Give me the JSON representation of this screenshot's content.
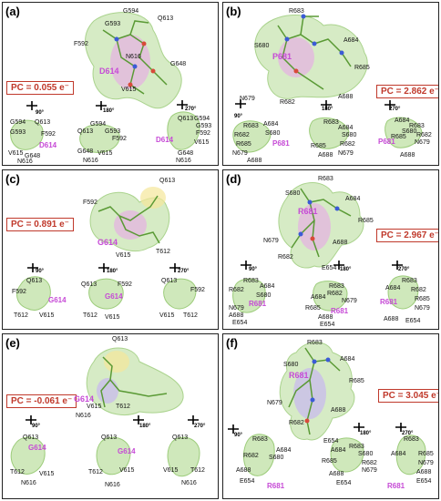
{
  "colors": {
    "key_residue": "#c64ad6",
    "pc_text": "#c0392b",
    "surface": "#b7dca0",
    "carbon": "#7ab648",
    "nitrogen": "#3b5bd6",
    "oxygen": "#d84a3a"
  },
  "rotation_icon": "axis-rotation-icon",
  "panels": [
    {
      "id": "a",
      "label": "(a)",
      "pc": "PC = 0.055 e⁻",
      "key": "D614",
      "main_labels": [
        "G594",
        "G593",
        "Q613",
        "F592",
        "N616",
        "V615",
        "G648"
      ],
      "rotations": [
        "90°",
        "180°",
        "270°"
      ],
      "small_views": [
        {
          "key": "D614",
          "labels": [
            "G594",
            "Q613",
            "G593",
            "F592",
            "V615",
            "G648",
            "N616"
          ]
        },
        {
          "key": "",
          "labels": [
            "G594",
            "Q613",
            "G593",
            "F592",
            "G648",
            "V615",
            "N616"
          ]
        },
        {
          "key": "D614",
          "labels": [
            "Q613",
            "G594",
            "G593",
            "F592",
            "V615",
            "G648",
            "N616"
          ]
        }
      ]
    },
    {
      "id": "b",
      "label": "(b)",
      "pc": "PC = 2.862 e⁻",
      "key": "P681",
      "main_labels": [
        "R683",
        "S680",
        "A684",
        "R685",
        "N679",
        "R682",
        "A688"
      ],
      "rotations": [
        "90°",
        "180°",
        "270°"
      ],
      "small_views": [
        {
          "key": "P681",
          "labels": [
            "R683",
            "A684",
            "R682",
            "S680",
            "A688",
            "N679",
            "R685"
          ]
        },
        {
          "key": "",
          "labels": [
            "R683",
            "A684",
            "S680",
            "R685",
            "A688",
            "N679",
            "R682"
          ]
        },
        {
          "key": "P681",
          "labels": [
            "A684",
            "R683",
            "R685",
            "N679",
            "A688",
            "S680",
            "R682"
          ]
        }
      ]
    },
    {
      "id": "c",
      "label": "(c)",
      "pc": "PC = 0.891 e⁻",
      "key": "G614",
      "main_labels": [
        "Q613",
        "F592",
        "V615",
        "T612"
      ],
      "rotations": [
        "90°",
        "180°",
        "270°"
      ],
      "small_views": [
        {
          "key": "G614",
          "labels": [
            "Q613",
            "F592",
            "T612",
            "V615"
          ]
        },
        {
          "key": "G614",
          "labels": [
            "Q613",
            "F592",
            "T612",
            "V615"
          ]
        },
        {
          "key": "",
          "labels": [
            "Q613",
            "F592",
            "V615",
            "T612"
          ]
        }
      ]
    },
    {
      "id": "d",
      "label": "(d)",
      "pc": "PC = 2.967 e⁻",
      "key": "R681",
      "main_labels": [
        "R683",
        "S680",
        "A684",
        "R685",
        "N679",
        "R682",
        "A688",
        "E654"
      ],
      "rotations": [
        "90°",
        "180°",
        "270°"
      ],
      "small_views": [
        {
          "key": "R681",
          "labels": [
            "R683",
            "A684",
            "R682",
            "S680",
            "N679",
            "A688",
            "E654"
          ]
        },
        {
          "key": "R681",
          "labels": [
            "R683",
            "R682",
            "A684",
            "R685",
            "N679",
            "A688",
            "E654"
          ]
        },
        {
          "key": "R681",
          "labels": [
            "R683",
            "A684",
            "R682",
            "R685",
            "N679",
            "A688",
            "E654"
          ]
        }
      ]
    },
    {
      "id": "e",
      "label": "(e)",
      "pc": "PC = -0.061 e⁻",
      "key": "G614",
      "main_labels": [
        "Q613",
        "V615",
        "T612",
        "N616"
      ],
      "rotations": [
        "90°",
        "180°",
        "270°"
      ],
      "small_views": [
        {
          "key": "G614",
          "labels": [
            "Q613",
            "T612",
            "V615",
            "N616"
          ]
        },
        {
          "key": "G614",
          "labels": [
            "Q613",
            "T612",
            "V615",
            "N616"
          ]
        },
        {
          "key": "",
          "labels": [
            "Q613",
            "V615",
            "T612",
            "N616"
          ]
        }
      ]
    },
    {
      "id": "f",
      "label": "(f)",
      "pc": "PC = 3.045 e⁻",
      "key": "R681",
      "main_labels": [
        "R683",
        "S680",
        "A684",
        "R685",
        "N679",
        "R682",
        "A688",
        "E654"
      ],
      "rotations": [
        "90°",
        "180°",
        "270°"
      ],
      "small_views": [
        {
          "key": "R681",
          "labels": [
            "R683",
            "A684",
            "S680",
            "R682",
            "A688",
            "E654"
          ]
        },
        {
          "key": "",
          "labels": [
            "A684",
            "R683",
            "S680",
            "R685",
            "R682",
            "N679",
            "A688",
            "E654"
          ]
        },
        {
          "key": "R681",
          "labels": [
            "R683",
            "A684",
            "R685",
            "N679",
            "A688",
            "E654"
          ]
        }
      ]
    }
  ]
}
